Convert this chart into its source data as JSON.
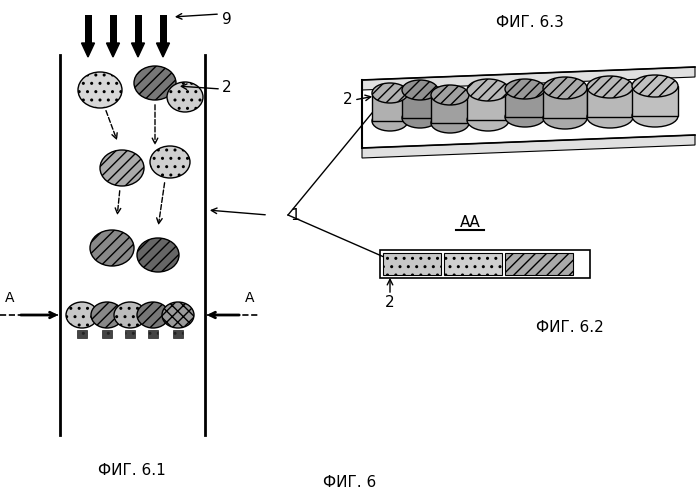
{
  "fig_title": "ФИГ. 6",
  "fig61_title": "ФИГ. 6.1",
  "fig62_title": "ФИГ. 6.2",
  "fig63_title": "ФИГ. 6.3",
  "label_aa": "АА",
  "label_1": "1",
  "label_2": "2",
  "label_9": "9",
  "label_A": "А",
  "bg_color": "#ffffff"
}
